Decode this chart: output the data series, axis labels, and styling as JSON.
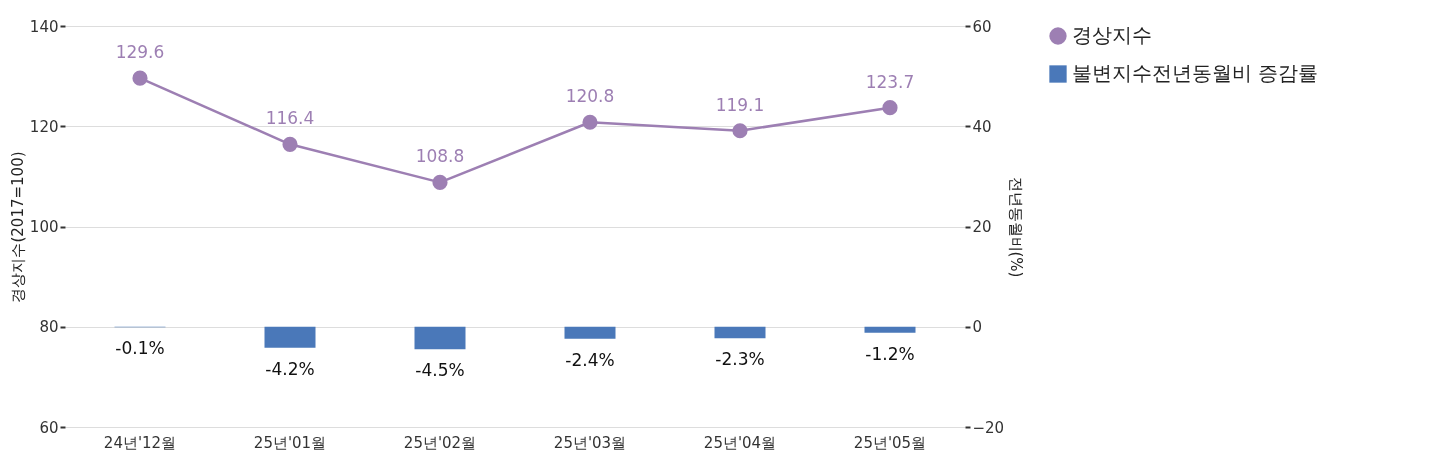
{
  "chart_data": {
    "type": "line",
    "categories": [
      "24년'12월",
      "25년'01월",
      "25년'02월",
      "25년'03월",
      "25년'04월",
      "25년'05월"
    ],
    "ylabel": "경상지수(2017=100)",
    "y2label": "전년동월비(%)",
    "ylim": [
      60,
      140
    ],
    "yticks": [
      60,
      80,
      100,
      120,
      140
    ],
    "y2lim": [
      -20,
      60
    ],
    "y2ticks": [
      {
        "value": -20,
        "label": "−20"
      },
      0,
      20,
      40,
      60
    ],
    "grid": "y",
    "legend": "right",
    "marker": "circle",
    "line_style": "solid",
    "series": [
      {
        "name": "경상지수",
        "color": "#9d7fb3",
        "values": [
          129.6,
          116.4,
          108.8,
          120.8,
          119.1,
          123.7
        ],
        "value_labels": [
          "129.6",
          "116.4",
          "108.8",
          "120.8",
          "119.1",
          "123.7"
        ]
      },
      {
        "name": "불변지수전년동월비 증감률",
        "type": "bar",
        "axis": "y2",
        "color": "#4a78b9",
        "values": [
          -0.1,
          -4.2,
          -4.5,
          -2.4,
          -2.3,
          -1.2
        ],
        "value_labels": [
          "-0.1%",
          "-4.2%",
          "-4.5%",
          "-2.4%",
          "-2.3%",
          "-1.2%"
        ]
      }
    ]
  }
}
